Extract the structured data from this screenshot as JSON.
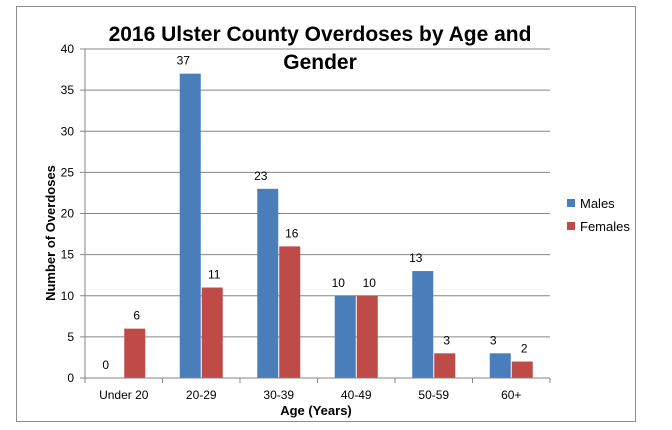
{
  "chart_data": {
    "type": "bar",
    "title_lines": [
      "2016 Ulster County Overdoses by Age and",
      "Gender"
    ],
    "xlabel": "Age (Years)",
    "ylabel": "Number of Overdoses",
    "categories": [
      "Under 20",
      "20-29",
      "30-39",
      "40-49",
      "50-59",
      "60+"
    ],
    "series": [
      {
        "name": "Males",
        "color": "#4a7ebb",
        "values": [
          0,
          37,
          23,
          10,
          13,
          3
        ]
      },
      {
        "name": "Females",
        "color": "#be4b48",
        "values": [
          6,
          11,
          16,
          10,
          3,
          2
        ]
      }
    ],
    "ylim": [
      0,
      40
    ],
    "yticks": [
      0,
      5,
      10,
      15,
      20,
      25,
      30,
      35,
      40
    ],
    "grid": true,
    "legend_position": "right"
  }
}
